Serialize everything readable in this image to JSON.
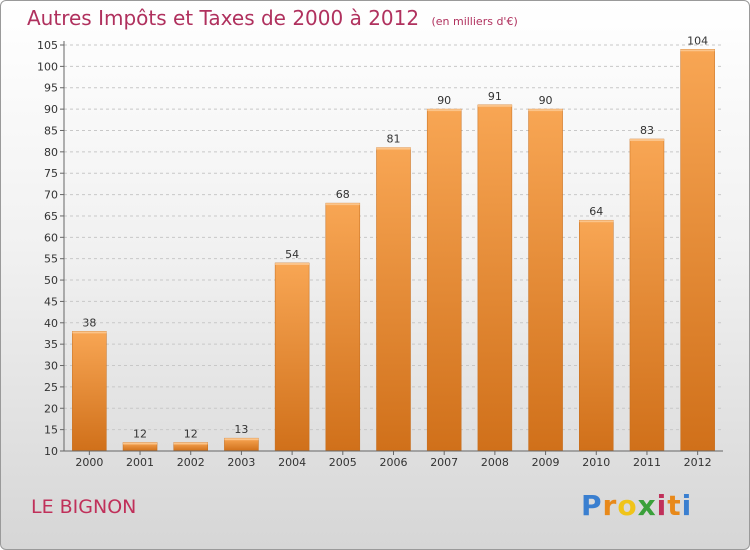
{
  "chart_data": {
    "type": "bar",
    "title": "Autres Impôts et Taxes de 2000 à 2012",
    "subtitle": "(en milliers d'€)",
    "categories": [
      "2000",
      "2001",
      "2002",
      "2003",
      "2004",
      "2005",
      "2006",
      "2007",
      "2008",
      "2009",
      "2010",
      "2011",
      "2012"
    ],
    "values": [
      38,
      12,
      12,
      13,
      54,
      68,
      81,
      90,
      91,
      90,
      64,
      83,
      104
    ],
    "ylim": [
      10,
      105
    ],
    "yticks": [
      10,
      15,
      20,
      25,
      30,
      35,
      40,
      45,
      50,
      55,
      60,
      65,
      70,
      75,
      80,
      85,
      90,
      95,
      100,
      105
    ],
    "grid": true,
    "bar_color": "#f08a2a"
  },
  "location": "LE BIGNON",
  "logo": {
    "letters": [
      "P",
      "r",
      "o",
      "x",
      "i",
      "t",
      "i"
    ]
  }
}
